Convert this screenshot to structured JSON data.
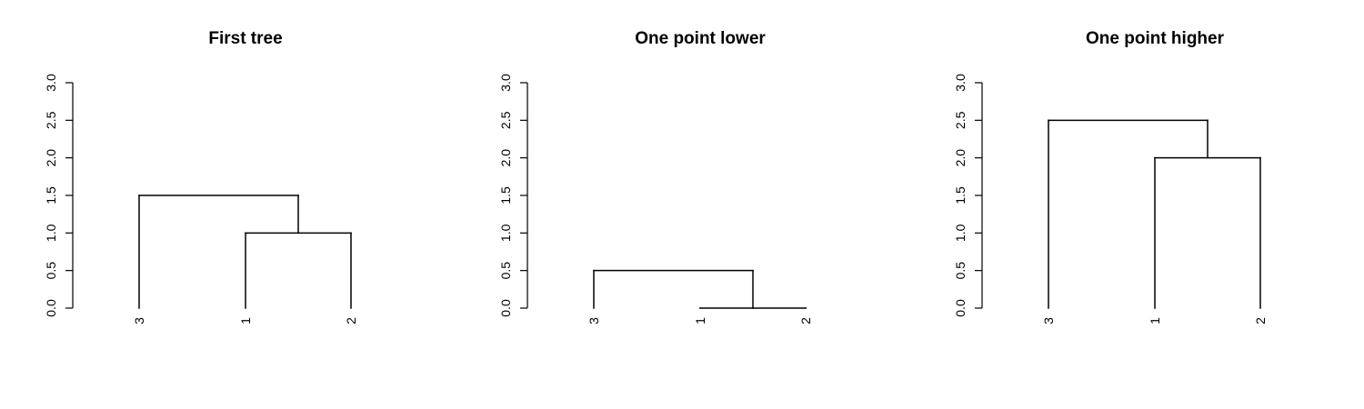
{
  "chart_data": [
    {
      "type": "dendrogram",
      "title": "First tree",
      "ylim": [
        0,
        3
      ],
      "yticks": [
        0,
        0.5,
        1,
        1.5,
        2,
        2.5,
        3
      ],
      "ytick_labels": [
        "0.0",
        "0.5",
        "1.0",
        "1.5",
        "2.0",
        "2.5",
        "3.0"
      ],
      "leaves": [
        "3",
        "1",
        "2"
      ],
      "merges": [
        {
          "height": 1.0,
          "joins": [
            "1",
            "2"
          ]
        },
        {
          "height": 1.5,
          "joins": [
            "3",
            "1+2"
          ]
        }
      ]
    },
    {
      "type": "dendrogram",
      "title": "One point lower",
      "ylim": [
        0,
        3
      ],
      "yticks": [
        0,
        0.5,
        1,
        1.5,
        2,
        2.5,
        3
      ],
      "ytick_labels": [
        "0.0",
        "0.5",
        "1.0",
        "1.5",
        "2.0",
        "2.5",
        "3.0"
      ],
      "leaves": [
        "3",
        "1",
        "2"
      ],
      "merges": [
        {
          "height": 0.0,
          "joins": [
            "1",
            "2"
          ]
        },
        {
          "height": 0.5,
          "joins": [
            "3",
            "1+2"
          ]
        }
      ]
    },
    {
      "type": "dendrogram",
      "title": "One point higher",
      "ylim": [
        0,
        3
      ],
      "yticks": [
        0,
        0.5,
        1,
        1.5,
        2,
        2.5,
        3
      ],
      "ytick_labels": [
        "0.0",
        "0.5",
        "1.0",
        "1.5",
        "2.0",
        "2.5",
        "3.0"
      ],
      "leaves": [
        "3",
        "1",
        "2"
      ],
      "merges": [
        {
          "height": 2.0,
          "joins": [
            "1",
            "2"
          ]
        },
        {
          "height": 2.5,
          "joins": [
            "3",
            "1+2"
          ]
        }
      ]
    }
  ],
  "style": {
    "line_color": "#000000",
    "background": "#ffffff"
  }
}
